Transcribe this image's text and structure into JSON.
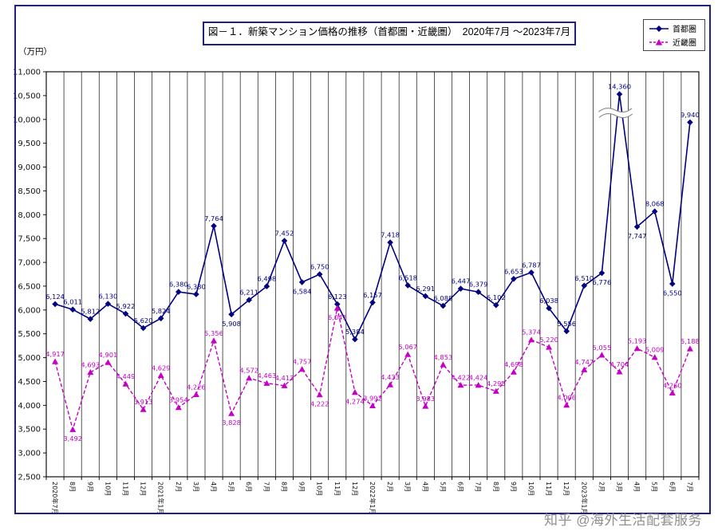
{
  "page": {
    "watermark": "知乎 @海外生活配套服务"
  },
  "chart_data": {
    "type": "line",
    "title": "図－１．新築マンション価格の推移（首都圏・近畿圏）　2020年7月 ～2023年7月",
    "ylabel": "（万円）",
    "xlabel": "",
    "ylim": [
      2500,
      11000
    ],
    "ytick_step": 500,
    "grid": "vertical-only",
    "legend_position": "top-right",
    "categories": [
      "2020年7月",
      "8月",
      "9月",
      "10月",
      "11月",
      "12月",
      "2021年1月",
      "2月",
      "3月",
      "4月",
      "5月",
      "6月",
      "7月",
      "8月",
      "9月",
      "10月",
      "11月",
      "12月",
      "2022年1月",
      "2月",
      "3月",
      "4月",
      "5月",
      "6月",
      "7月",
      "8月",
      "9月",
      "10月",
      "11月",
      "12月",
      "2023年1月",
      "2月",
      "3月",
      "4月",
      "5月",
      "6月",
      "7月"
    ],
    "series": [
      {
        "name": "首都圏",
        "color": "#000080",
        "marker": "diamond",
        "line_style": "solid",
        "values": [
          6124,
          6011,
          5812,
          6130,
          5922,
          5620,
          5824,
          6380,
          6330,
          7764,
          5908,
          6211,
          6498,
          7452,
          6584,
          6750,
          6123,
          5384,
          6157,
          7418,
          6518,
          6291,
          6088,
          6447,
          6379,
          6102,
          6653,
          6787,
          6038,
          5556,
          6510,
          6776,
          14360,
          7747,
          8068,
          6550,
          9940
        ],
        "label_positions": [
          "a",
          "a",
          "a",
          "a",
          "a",
          "a",
          "a",
          "a",
          "a",
          "a",
          "b",
          "a",
          "a",
          "a",
          "b",
          "a",
          "a",
          "a",
          "a",
          "a",
          "a",
          "a",
          "a",
          "a",
          "a",
          "a",
          "a",
          "a",
          "a",
          "a",
          "a",
          "b",
          "a",
          "b",
          "a",
          "b",
          "a"
        ]
      },
      {
        "name": "近畿圏",
        "color": "#c400c4",
        "marker": "triangle",
        "line_style": "dashed",
        "values": [
          4917,
          3492,
          4693,
          4901,
          4449,
          3913,
          4629,
          3954,
          4226,
          5356,
          3828,
          4572,
          4463,
          4413,
          4757,
          4222,
          6041,
          4274,
          3992,
          4433,
          5067,
          3983,
          4853,
          4422,
          4424,
          4295,
          4698,
          5374,
          5220,
          4006,
          4747,
          5055,
          4704,
          5193,
          5009,
          4260,
          5188
        ],
        "label_positions": [
          "a",
          "b",
          "a",
          "a",
          "a",
          "a",
          "a",
          "a",
          "a",
          "a",
          "b",
          "a",
          "a",
          "a",
          "a",
          "b",
          "b",
          "b",
          "a",
          "a",
          "a",
          "a",
          "a",
          "a",
          "a",
          "a",
          "a",
          "a",
          "a",
          "a",
          "a",
          "a",
          "a",
          "a",
          "a",
          "a",
          "a"
        ]
      }
    ],
    "axis_break": {
      "series": "首都圏",
      "category_index": 32,
      "category_label": "2023年3月",
      "actual_value": 14360,
      "plotted_at": 10530
    }
  }
}
